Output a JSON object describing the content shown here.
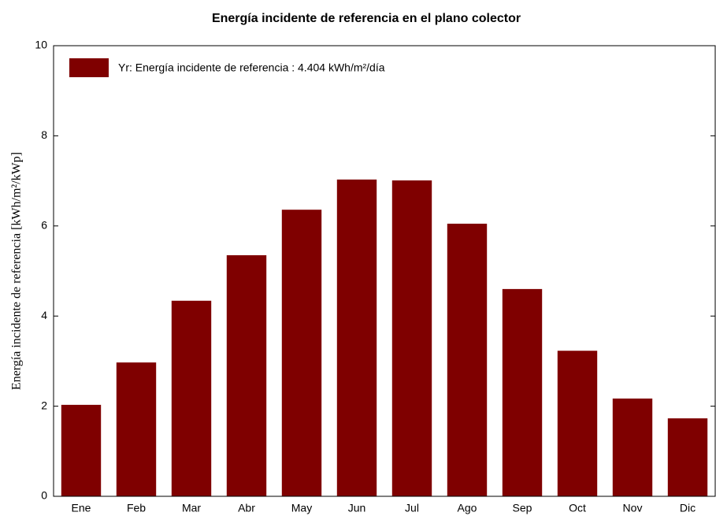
{
  "chart_data": {
    "type": "bar",
    "title": "Energía incidente de referencia en el plano colector",
    "y_label": "Energía incidente de referencia [kWh/m²/kWp]",
    "categories": [
      "Ene",
      "Feb",
      "Mar",
      "Abr",
      "May",
      "Jun",
      "Jul",
      "Ago",
      "Sep",
      "Oct",
      "Nov",
      "Dic"
    ],
    "series": [
      {
        "name": "Yr: Energía incidente de referencia :  4.404 kWh/m²/día",
        "color": "#7f0000",
        "values": [
          2.03,
          2.97,
          4.34,
          5.35,
          6.36,
          7.03,
          7.01,
          6.05,
          4.6,
          3.23,
          2.17,
          1.73
        ]
      }
    ],
    "ylim": [
      0,
      10
    ],
    "yticks": [
      0,
      2,
      4,
      6,
      8,
      10
    ],
    "legend": "upper left",
    "grid": false
  }
}
